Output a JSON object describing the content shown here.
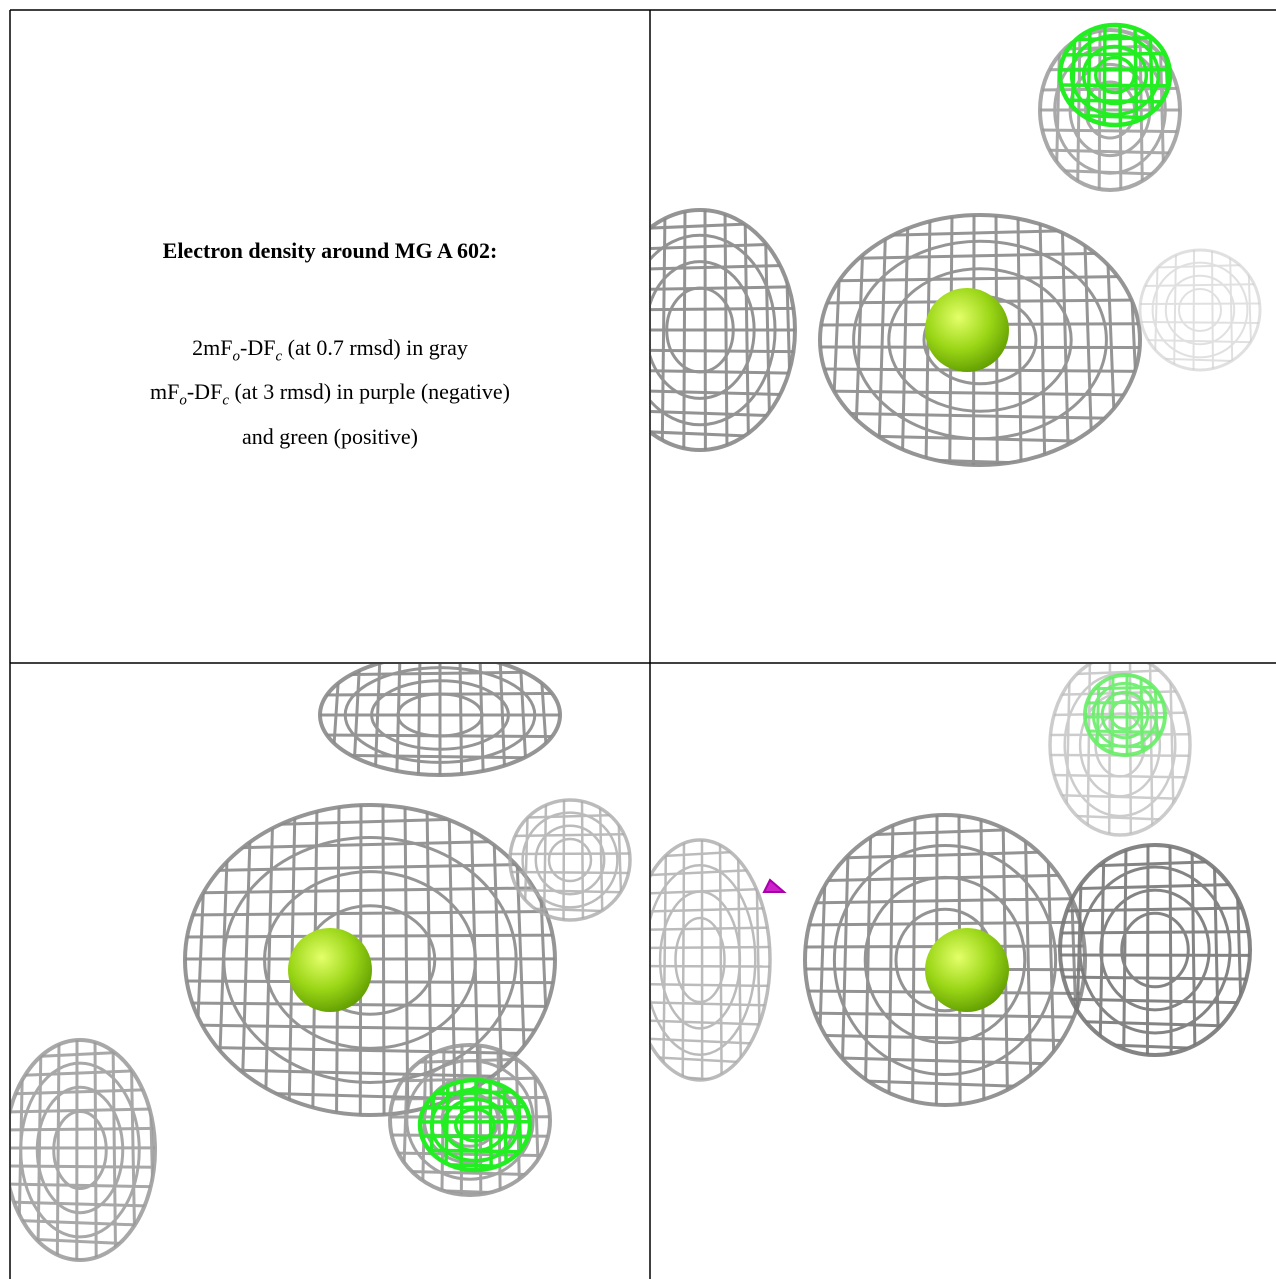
{
  "panel_text": {
    "title": "Electron density around MG A 602:",
    "lines": [
      [
        "2mF",
        "o",
        "-DF",
        "c",
        " (at 0.7 rmsd) in gray"
      ],
      [
        "mF",
        "o",
        "-DF",
        "c",
        " (at 3 rmsd) in purple (negative)"
      ],
      [
        "and green (positive)"
      ]
    ]
  }
}
